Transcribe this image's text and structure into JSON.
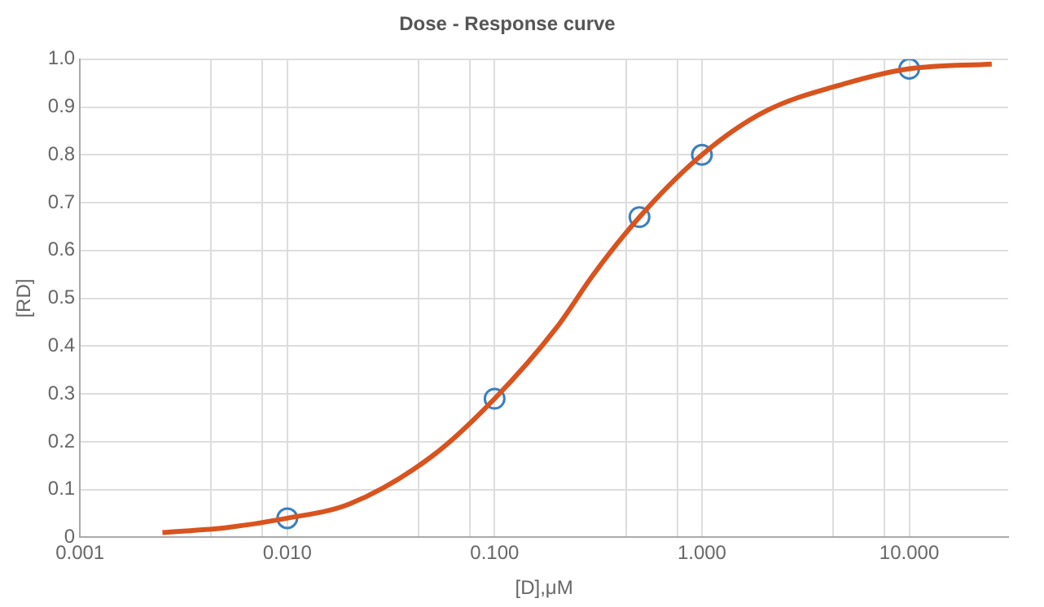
{
  "chart_data": {
    "type": "line",
    "title": "Dose - Response curve",
    "xlabel": "[D],μM",
    "ylabel": "[RD]",
    "log": "x",
    "xlim": [
      0.001,
      30
    ],
    "ylim": [
      0,
      1
    ],
    "xticks": [
      {
        "value": 0.001,
        "label": "0.001"
      },
      {
        "value": 0.0043,
        "label": null
      },
      {
        "value": 0.0076,
        "label": null
      },
      {
        "value": 0.01,
        "label": "0.010"
      },
      {
        "value": 0.043,
        "label": null
      },
      {
        "value": 0.076,
        "label": null
      },
      {
        "value": 0.1,
        "label": "0.100"
      },
      {
        "value": 0.43,
        "label": null
      },
      {
        "value": 0.76,
        "label": null
      },
      {
        "value": 1,
        "label": "1.000"
      },
      {
        "value": 4.3,
        "label": null
      },
      {
        "value": 7.6,
        "label": null
      },
      {
        "value": 10,
        "label": "10.000"
      }
    ],
    "yticks": [
      0,
      0.1,
      0.2,
      0.3,
      0.4,
      0.5,
      0.6,
      0.7,
      0.8,
      0.9,
      {
        "value": 1,
        "label": "1.0"
      }
    ],
    "grid": true,
    "legend": false,
    "series": [
      {
        "marker": "none",
        "color": "#d9531e",
        "x": [
          0.0025,
          0.005,
          0.01,
          0.02,
          0.05,
          0.1,
          0.2,
          0.3,
          0.5,
          1,
          2,
          5,
          10,
          25
        ],
        "values": [
          0.01,
          0.02,
          0.04,
          0.07,
          0.17,
          0.29,
          0.44,
          0.55,
          0.67,
          0.8,
          0.89,
          0.95,
          0.98,
          0.99
        ]
      },
      {
        "type": "scatter",
        "marker": "circle",
        "color": "#3a7fc0",
        "x": [
          0.01,
          0.1,
          0.5,
          1,
          10
        ],
        "values": [
          0.04,
          0.29,
          0.67,
          0.8,
          0.98
        ]
      }
    ]
  }
}
